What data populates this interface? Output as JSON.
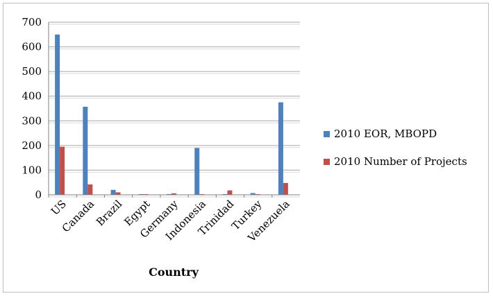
{
  "chart_data": {
    "type": "bar",
    "title": "",
    "xlabel": "Country",
    "ylabel": "",
    "ylim": [
      0,
      700
    ],
    "yticks": [
      0,
      100,
      200,
      300,
      400,
      500,
      600,
      700
    ],
    "grid": true,
    "legend_position": "right",
    "categories": [
      "US",
      "Canada",
      "Brazil",
      "Egypt",
      "Germany",
      "Indonesia",
      "Trinidad",
      "Turkey",
      "Venezuela"
    ],
    "series": [
      {
        "name": "2010 EOR, MBOPD",
        "color": "#4f81bd",
        "values": [
          650,
          357,
          20,
          2,
          2,
          190,
          2,
          7,
          375
        ]
      },
      {
        "name": "2010 Number of Projects",
        "color": "#c0504d",
        "values": [
          195,
          42,
          10,
          2,
          6,
          2,
          18,
          2,
          48
        ]
      }
    ]
  }
}
